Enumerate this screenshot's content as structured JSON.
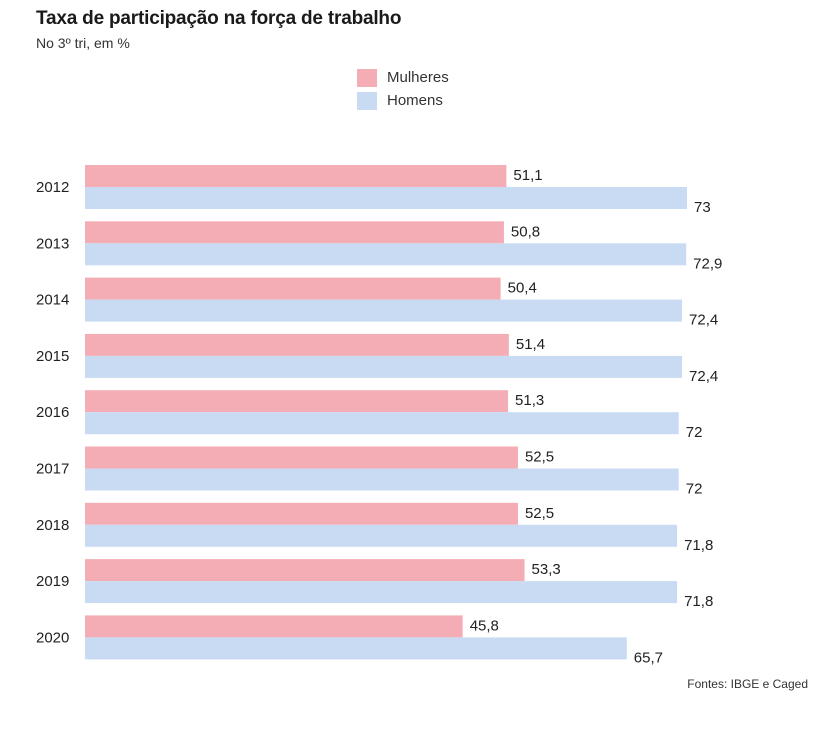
{
  "title": "Taxa de participação na força de trabalho",
  "subtitle": "No 3º tri, em %",
  "source": "Fontes: IBGE e Caged",
  "legend": [
    {
      "label": "Mulheres",
      "color": "#f5adb5"
    },
    {
      "label": "Homens",
      "color": "#c8dbf2"
    }
  ],
  "chart_data": {
    "type": "bar",
    "orientation": "horizontal",
    "categories": [
      "2012",
      "2013",
      "2014",
      "2015",
      "2016",
      "2017",
      "2018",
      "2019",
      "2020"
    ],
    "series": [
      {
        "name": "Mulheres",
        "color": "#f5adb5",
        "values": [
          51.1,
          50.8,
          50.4,
          51.4,
          51.3,
          52.5,
          52.5,
          53.3,
          45.8
        ],
        "labels": [
          "51,1",
          "50,8",
          "50,4",
          "51,4",
          "51,3",
          "52,5",
          "52,5",
          "53,3",
          "45,8"
        ]
      },
      {
        "name": "Homens",
        "color": "#c8dbf2",
        "values": [
          73,
          72.9,
          72.4,
          72.4,
          72,
          72,
          71.8,
          71.8,
          65.7
        ],
        "labels": [
          "73",
          "72,9",
          "72,4",
          "72,4",
          "72",
          "72",
          "71,8",
          "71,8",
          "65,7"
        ]
      }
    ],
    "xlim": [
      0,
      73
    ],
    "grid": false,
    "legend_position": "top-center"
  }
}
